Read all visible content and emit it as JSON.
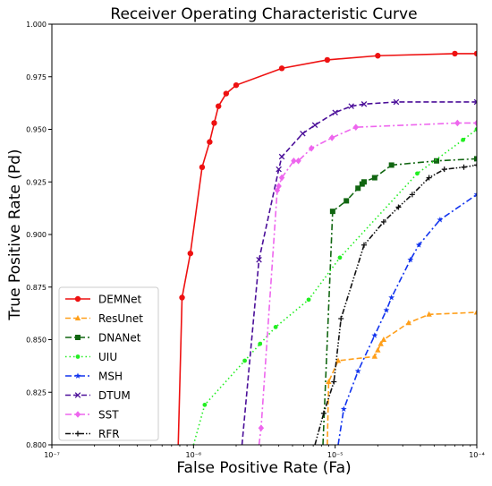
{
  "chart_data": {
    "type": "line",
    "title": "Receiver Operating Characteristic Curve",
    "xlabel": "False Positive Rate (Fa)",
    "ylabel": "True Positive Rate (Pd)",
    "xscale": "log",
    "xlim": [
      1e-07,
      0.0001
    ],
    "ylim": [
      0.8,
      1.0
    ],
    "x_ticks": [
      1e-07,
      1e-06,
      1e-05,
      0.0001
    ],
    "x_tick_labels": [
      "10⁻⁷",
      "10⁻⁶",
      "10⁻⁵",
      "10⁻⁴"
    ],
    "y_ticks": [
      0.8,
      0.825,
      0.85,
      0.875,
      0.9,
      0.925,
      0.95,
      0.975,
      1.0
    ],
    "y_tick_labels": [
      "0.800",
      "0.825",
      "0.850",
      "0.875",
      "0.900",
      "0.925",
      "0.950",
      "0.975",
      "1.000"
    ],
    "grid": false,
    "legend_position": "lower-left",
    "series": [
      {
        "name": "DEMNet",
        "color": "#ee1111",
        "dash": "solid",
        "marker": "circle",
        "marker_every": 1,
        "x": [
          7.8e-07,
          8.3e-07,
          9.5e-07,
          1.15e-06,
          1.3e-06,
          1.4e-06,
          1.5e-06,
          1.7e-06,
          2e-06,
          4.2e-06,
          8.8e-06,
          2e-05,
          7e-05,
          0.0001
        ],
        "y": [
          0.8,
          0.87,
          0.891,
          0.932,
          0.944,
          0.953,
          0.961,
          0.967,
          0.971,
          0.979,
          0.983,
          0.985,
          0.986,
          0.986
        ]
      },
      {
        "name": "ResUnet",
        "color": "#ff9f1a",
        "dash": "dashed",
        "marker": "triangle",
        "marker_every": 1,
        "x": [
          8.8e-06,
          9e-06,
          1.05e-05,
          1.9e-05,
          2e-05,
          2.1e-05,
          2.2e-05,
          3.3e-05,
          4.6e-05,
          0.0001
        ],
        "y": [
          0.8,
          0.83,
          0.84,
          0.842,
          0.845,
          0.848,
          0.85,
          0.858,
          0.862,
          0.863
        ]
      },
      {
        "name": "DNANet",
        "color": "#116611",
        "dash": "dashdot",
        "marker": "square",
        "marker_every": 1,
        "x": [
          8.2e-06,
          9.6e-06,
          1.2e-05,
          1.45e-05,
          1.55e-05,
          1.6e-05,
          1.9e-05,
          2.5e-05,
          5.2e-05,
          0.0001
        ],
        "y": [
          0.8,
          0.911,
          0.916,
          0.922,
          0.924,
          0.925,
          0.927,
          0.933,
          0.935,
          0.936
        ]
      },
      {
        "name": "UIU",
        "color": "#22ee22",
        "dash": "dotted",
        "marker": "circle-small",
        "marker_every": 1,
        "x": [
          1e-06,
          1.2e-06,
          2.3e-06,
          2.95e-06,
          3.8e-06,
          6.5e-06,
          1.08e-05,
          3.8e-05,
          8e-05,
          0.0001
        ],
        "y": [
          0.8,
          0.819,
          0.84,
          0.848,
          0.856,
          0.869,
          0.889,
          0.929,
          0.945,
          0.95
        ]
      },
      {
        "name": "MSH",
        "color": "#1133ee",
        "dash": "dashdot",
        "marker": "star",
        "marker_every": 1,
        "x": [
          1.05e-05,
          1.15e-05,
          1.45e-05,
          1.9e-05,
          2.3e-05,
          2.5e-05,
          3.4e-05,
          3.9e-05,
          5.5e-05,
          0.0001
        ],
        "y": [
          0.8,
          0.817,
          0.835,
          0.852,
          0.864,
          0.87,
          0.888,
          0.895,
          0.907,
          0.919
        ]
      },
      {
        "name": "DTUM",
        "color": "#4b0f99",
        "dash": "dashed",
        "marker": "x",
        "marker_every": 1,
        "x": [
          2.2e-06,
          2.9e-06,
          4e-06,
          4.2e-06,
          5.9e-06,
          7.2e-06,
          1e-05,
          1.3e-05,
          1.6e-05,
          2.7e-05,
          0.0001
        ],
        "y": [
          0.8,
          0.888,
          0.931,
          0.937,
          0.948,
          0.952,
          0.958,
          0.961,
          0.962,
          0.963,
          0.963
        ]
      },
      {
        "name": "SST",
        "color": "#ee66ee",
        "dash": "dashdot",
        "marker": "diamond",
        "marker_every": 1,
        "x": [
          2.9e-06,
          3e-06,
          3.9e-06,
          4e-06,
          4.2e-06,
          5.1e-06,
          5.5e-06,
          6.8e-06,
          9.5e-06,
          1.4e-05,
          7.3e-05,
          0.0001
        ],
        "y": [
          0.8,
          0.808,
          0.921,
          0.923,
          0.927,
          0.935,
          0.935,
          0.941,
          0.946,
          0.951,
          0.953,
          0.953
        ]
      },
      {
        "name": "RFR",
        "color": "#111111",
        "dash": "dashdotdot",
        "marker": "plus",
        "marker_every": 1,
        "x": [
          7.2e-06,
          8.3e-06,
          9.8e-06,
          1.1e-05,
          1.6e-05,
          2.2e-05,
          2.8e-05,
          3.5e-05,
          4.6e-05,
          5.9e-05,
          8.1e-05,
          0.0001
        ],
        "y": [
          0.8,
          0.815,
          0.83,
          0.86,
          0.895,
          0.906,
          0.913,
          0.919,
          0.927,
          0.931,
          0.932,
          0.933
        ]
      }
    ]
  }
}
